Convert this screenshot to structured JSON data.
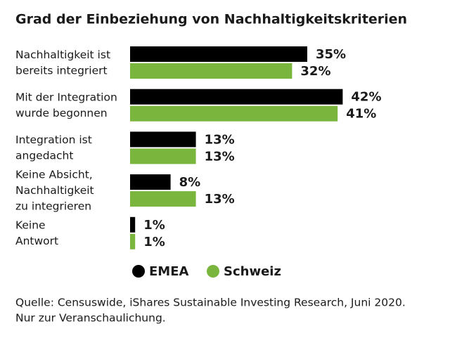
{
  "chart_data": {
    "type": "barh",
    "title": "Grad der Einbeziehung von Nachhaltigkeitskriterien",
    "categories": [
      "Nachhaltigkeit ist\nbereits integriert",
      "Mit der Integration\nwurde begonnen",
      "Integration ist\nangedacht",
      "Keine Absicht,\nNachhaltigkeit\nzu integrieren",
      "Keine\nAntwort"
    ],
    "series": [
      {
        "name": "EMEA",
        "color": "#000000",
        "values": [
          35,
          42,
          13,
          8,
          1
        ],
        "value_labels": [
          "35%",
          "42%",
          "13%",
          "8%",
          "1%"
        ]
      },
      {
        "name": "Schweiz",
        "color": "#7ab63e",
        "values": [
          32,
          41,
          13,
          13,
          1
        ],
        "value_labels": [
          "32%",
          "41%",
          "13%",
          "13%",
          "1%"
        ]
      }
    ],
    "source": [
      "Quelle: Censuswide, iShares Sustainable Investing Research, Juni 2020.",
      "Nur zur Veranschaulichung."
    ]
  }
}
